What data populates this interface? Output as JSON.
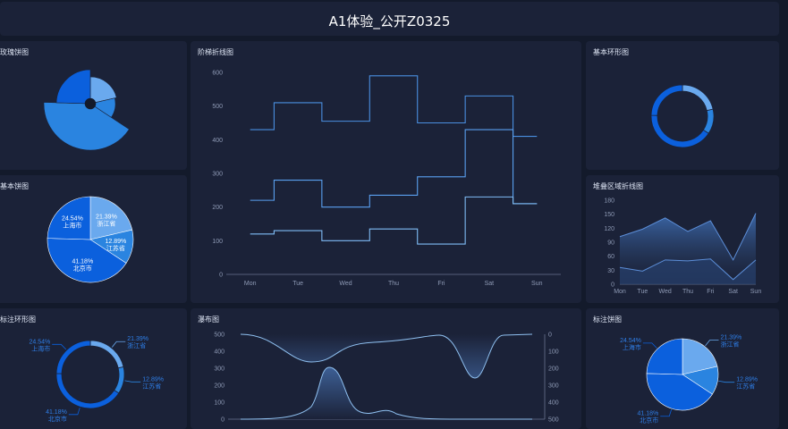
{
  "title": "A1体验_公开Z0325",
  "panels": {
    "rose": "玫瑰饼图",
    "step": "阶梯折线图",
    "ring": "基本环形图",
    "pie": "基本饼图",
    "stacked_area": "堆叠区域折线图",
    "label_ring": "标注环形图",
    "waterfall": "瀑布图",
    "label_pie": "标注饼图"
  },
  "colors": {
    "background": "#131a2b",
    "panel": "#1b2238",
    "blue_dark": "#0b60dd",
    "blue_mid": "#2a84e0",
    "blue_light": "#6aa9ee",
    "blue_pale": "#9ec8f5"
  },
  "pie_slices": [
    {
      "pct": "21.39%",
      "name": "浙江省",
      "value": 21.39
    },
    {
      "pct": "12.89%",
      "name": "江苏省",
      "value": 12.89
    },
    {
      "pct": "41.18%",
      "name": "北京市",
      "value": 41.18
    },
    {
      "pct": "24.54%",
      "name": "上海市",
      "value": 24.54
    }
  ],
  "chart_data": [
    {
      "type": "line",
      "name": "step-line",
      "categories": [
        "Mon",
        "Tue",
        "Wed",
        "Thu",
        "Fri",
        "Sat",
        "Sun"
      ],
      "y_ticks": [
        "0",
        "100",
        "200",
        "300",
        "400",
        "500",
        "600"
      ],
      "ylim": [
        0,
        600
      ],
      "step": "middle",
      "series": [
        {
          "values": [
            430,
            510,
            455,
            590,
            450,
            530,
            410
          ]
        },
        {
          "values": [
            220,
            280,
            200,
            235,
            290,
            430,
            210
          ]
        },
        {
          "values": [
            120,
            130,
            100,
            135,
            90,
            230,
            210
          ]
        }
      ]
    },
    {
      "type": "area",
      "name": "stacked-area",
      "categories": [
        "Mon",
        "Tue",
        "Wed",
        "Thu",
        "Fri",
        "Sat",
        "Sun"
      ],
      "y_ticks": [
        "0",
        "30",
        "60",
        "90",
        "120",
        "150",
        "180"
      ],
      "ylim": [
        0,
        180
      ],
      "series": [
        {
          "values": [
            36,
            28,
            52,
            50,
            54,
            10,
            52
          ]
        },
        {
          "values": [
            66,
            90,
            90,
            63,
            82,
            42,
            100
          ]
        }
      ]
    },
    {
      "type": "area",
      "name": "waterfall",
      "y_ticks_left": [
        "0",
        "100",
        "200",
        "300",
        "400",
        "500"
      ],
      "y_ticks_right": [
        "0",
        "100",
        "200",
        "300",
        "400",
        "500"
      ],
      "ylim": [
        0,
        500
      ]
    }
  ]
}
